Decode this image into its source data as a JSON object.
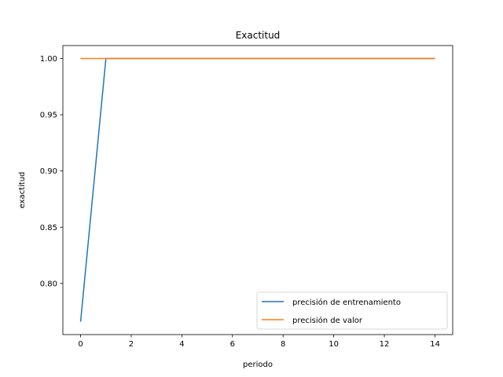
{
  "chart_data": {
    "type": "line",
    "title": "Exactitud",
    "xlabel": "periodo",
    "ylabel": "exactitud",
    "xlim": [
      -0.7,
      14.7
    ],
    "ylim": [
      0.7545,
      1.0115
    ],
    "xticks": [
      0,
      2,
      4,
      6,
      8,
      10,
      12,
      14
    ],
    "xtick_labels": [
      "0",
      "2",
      "4",
      "6",
      "8",
      "10",
      "12",
      "14"
    ],
    "yticks": [
      0.8,
      0.85,
      0.9,
      0.95,
      1.0
    ],
    "ytick_labels": [
      "0.80",
      "0.85",
      "0.90",
      "0.95",
      "1.00"
    ],
    "grid": false,
    "legend_position": "lower-right",
    "x": [
      0,
      1,
      2,
      3,
      4,
      5,
      6,
      7,
      8,
      9,
      10,
      11,
      12,
      13,
      14
    ],
    "series": [
      {
        "name": "precisión de entrenamiento",
        "color": "#1f77b4",
        "values": [
          0.766,
          1.0,
          1.0,
          1.0,
          1.0,
          1.0,
          1.0,
          1.0,
          1.0,
          1.0,
          1.0,
          1.0,
          1.0,
          1.0,
          1.0
        ]
      },
      {
        "name": "precisión de valor",
        "color": "#ff7f0e",
        "values": [
          1.0,
          1.0,
          1.0,
          1.0,
          1.0,
          1.0,
          1.0,
          1.0,
          1.0,
          1.0,
          1.0,
          1.0,
          1.0,
          1.0,
          1.0
        ]
      }
    ]
  }
}
